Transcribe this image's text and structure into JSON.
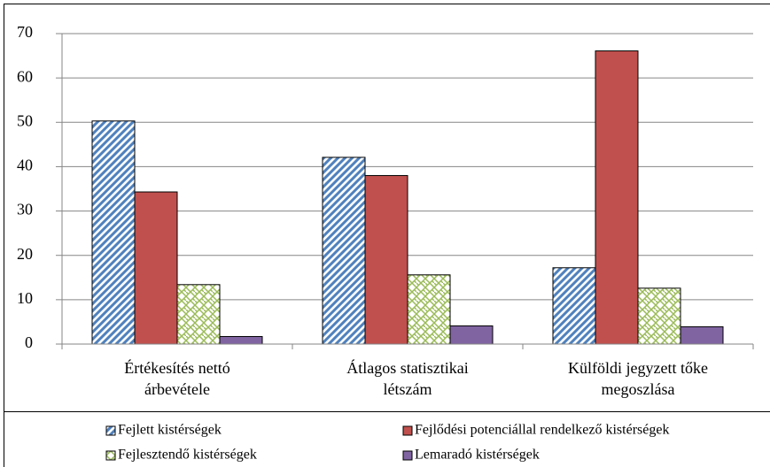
{
  "chart_data": {
    "type": "bar",
    "categories": [
      [
        "Értékesítés nettó",
        "árbevétele"
      ],
      [
        "Átlagos statisztikai",
        "létszám"
      ],
      [
        "Külföldi jegyzett tőke",
        "megoszlása"
      ]
    ],
    "series": [
      {
        "name": "Fejlett kistérségek",
        "color": "#4f81bd",
        "pattern": "stripes",
        "values": [
          50.3,
          42.1,
          17.2
        ]
      },
      {
        "name": "Fejlődési potenciállal rendelkező kistérségek",
        "color": "#c0504d",
        "pattern": "solid",
        "values": [
          34.3,
          38.0,
          66.1
        ]
      },
      {
        "name": "Fejlesztendő kistérségek",
        "color": "#9bbb59",
        "pattern": "weave",
        "values": [
          13.4,
          15.6,
          12.6
        ]
      },
      {
        "name": "Lemaradó kistérségek",
        "color": "#8064a2",
        "pattern": "solid",
        "values": [
          1.7,
          4.1,
          3.9
        ]
      }
    ],
    "ylim": [
      0,
      70
    ],
    "yticks": [
      0,
      10,
      20,
      30,
      40,
      50,
      60,
      70
    ],
    "grid": true,
    "legend": "bottom"
  }
}
